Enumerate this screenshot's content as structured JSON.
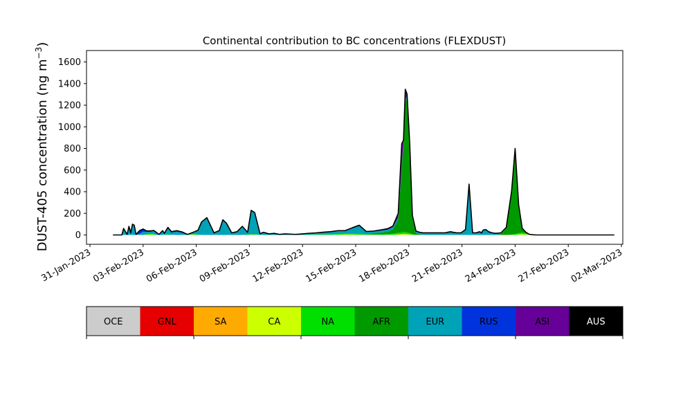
{
  "chart_data": {
    "type": "area",
    "stacked": true,
    "title": "Continental contribution to BC concentrations (FLEXDUST)",
    "ylabel": "DUST-405 concentration (ng m",
    "ylabel_sup": "−3",
    "ylabel_close": ")",
    "ylim": [
      -80,
      1720
    ],
    "yticks": [
      0,
      200,
      400,
      600,
      800,
      1000,
      1200,
      1400,
      1600
    ],
    "xlim_days": [
      -0.6,
      30.1
    ],
    "xticks": [
      {
        "day": 0,
        "label": "31-Jan-2023"
      },
      {
        "day": 3,
        "label": "03-Feb-2023"
      },
      {
        "day": 6,
        "label": "06-Feb-2023"
      },
      {
        "day": 9,
        "label": "09-Feb-2023"
      },
      {
        "day": 12,
        "label": "12-Feb-2023"
      },
      {
        "day": 15,
        "label": "15-Feb-2023"
      },
      {
        "day": 18,
        "label": "18-Feb-2023"
      },
      {
        "day": 21,
        "label": "21-Feb-2023"
      },
      {
        "day": 24,
        "label": "24-Feb-2023"
      },
      {
        "day": 27,
        "label": "27-Feb-2023"
      },
      {
        "day": 30,
        "label": "02-Mar-2023"
      }
    ],
    "x_days": [
      1.3,
      1.6,
      1.8,
      1.9,
      2.1,
      2.2,
      2.3,
      2.4,
      2.5,
      2.6,
      2.8,
      3.0,
      3.2,
      3.4,
      3.6,
      3.7,
      3.9,
      4.1,
      4.2,
      4.4,
      4.6,
      4.9,
      5.2,
      5.5,
      5.7,
      5.9,
      6.1,
      6.3,
      6.6,
      6.8,
      7.0,
      7.3,
      7.5,
      7.7,
      8.0,
      8.3,
      8.6,
      8.9,
      9.1,
      9.3,
      9.6,
      9.8,
      10.1,
      10.4,
      10.7,
      11.0,
      11.3,
      11.6,
      12.0,
      12.4,
      12.8,
      13.2,
      13.6,
      14.0,
      14.4,
      14.8,
      15.2,
      15.6,
      16.0,
      16.4,
      16.8,
      17.1,
      17.4,
      17.6,
      17.7,
      17.8,
      17.9,
      18.05,
      18.2,
      18.4,
      18.6,
      18.8,
      19.1,
      19.3,
      19.5,
      19.7,
      19.9,
      20.05,
      20.2,
      20.35,
      20.5,
      20.7,
      20.95,
      21.2,
      21.4,
      21.6,
      21.8,
      22.0,
      22.1,
      22.2,
      22.35,
      22.5,
      22.7,
      22.9,
      23.2,
      23.5,
      23.8,
      24.0,
      24.2,
      24.4,
      24.6,
      24.8,
      25.0,
      25.2,
      25.4,
      25.6,
      25.8,
      26.0,
      26.3,
      26.6,
      26.8,
      27.1,
      27.4,
      27.8,
      28.2,
      28.5,
      28.7,
      28.9,
      29.1,
      29.3,
      29.5,
      29.6
    ],
    "series": [
      {
        "name": "OCE",
        "color": "#cccccc",
        "values": [
          0,
          0,
          0,
          0,
          0,
          0,
          0,
          0,
          0,
          0,
          0,
          0,
          0,
          0,
          0,
          0,
          0,
          0,
          0,
          0,
          0,
          0,
          0,
          0,
          0,
          0,
          0,
          0,
          0,
          0,
          0,
          0,
          0,
          0,
          0,
          0,
          0,
          0,
          0,
          0,
          0,
          0,
          0,
          0,
          0,
          0,
          0,
          0,
          0,
          0,
          0,
          0,
          0,
          0,
          0,
          0,
          0,
          0,
          0,
          0,
          0,
          0,
          0,
          0,
          0,
          0,
          0,
          0,
          0,
          0,
          0,
          0,
          0,
          0,
          0,
          0,
          0,
          0,
          0,
          0,
          0,
          0,
          0,
          0,
          0,
          0,
          0,
          0,
          0,
          0,
          0,
          0,
          0,
          0,
          0,
          0,
          0,
          0,
          0,
          0,
          0,
          0,
          0,
          0,
          0,
          0,
          0,
          0,
          0,
          0,
          0,
          0,
          0,
          0,
          0,
          0,
          0,
          0,
          0,
          0
        ]
      },
      {
        "name": "GNL",
        "color": "#e60000",
        "values": [
          0,
          0,
          0,
          0,
          0,
          0,
          0,
          0,
          0,
          0,
          0,
          0,
          0,
          0,
          0,
          0,
          0,
          0,
          0,
          0,
          0,
          0,
          0,
          0,
          0,
          0,
          0,
          0,
          0,
          0,
          0,
          0,
          0,
          0,
          0,
          0,
          0,
          0,
          0,
          0,
          0,
          0,
          0,
          0,
          0,
          0,
          0,
          0,
          0,
          0,
          0,
          0,
          0,
          0,
          0,
          0,
          0,
          0,
          0,
          0,
          0,
          0,
          0,
          0,
          0,
          0,
          0,
          0,
          0,
          0,
          0,
          0,
          0,
          0,
          0,
          0,
          0,
          0,
          0,
          0,
          0,
          0,
          0,
          0,
          0,
          0,
          0,
          0,
          0,
          0,
          0,
          0,
          0,
          0,
          0,
          0,
          0,
          0,
          0,
          0,
          0,
          0,
          0,
          0,
          0,
          0,
          0,
          0,
          0,
          0,
          0,
          0,
          0,
          0,
          0,
          0,
          0,
          0,
          0,
          0
        ]
      },
      {
        "name": "SA",
        "color": "#ffaa00",
        "values": [
          0,
          0,
          0,
          0,
          0,
          0,
          0,
          0,
          0,
          0,
          0,
          0,
          0,
          0,
          0,
          0,
          0,
          0,
          0,
          0,
          0,
          0,
          0,
          0,
          0,
          0,
          0,
          0,
          0,
          0,
          0,
          0,
          0,
          0,
          0,
          0,
          0,
          0,
          0,
          0,
          0,
          0,
          0,
          0,
          0,
          0,
          0,
          0,
          0,
          0,
          0,
          0,
          0,
          0,
          0,
          0,
          0,
          0,
          0,
          0,
          0,
          0,
          0,
          0,
          0,
          0,
          0,
          0,
          0,
          0,
          0,
          0,
          0,
          0,
          0,
          0,
          0,
          0,
          0,
          0,
          0,
          0,
          0,
          0,
          0,
          0,
          0,
          0,
          0,
          0,
          0,
          0,
          0,
          0,
          0,
          0,
          0,
          0,
          0,
          0,
          0,
          0,
          0,
          0,
          0,
          0,
          0,
          0,
          0,
          0,
          0,
          0,
          0,
          0,
          0,
          0,
          0,
          0,
          0,
          0
        ]
      },
      {
        "name": "CA",
        "color": "#ccff00",
        "values": [
          0,
          0,
          0,
          0,
          0,
          0,
          0,
          0,
          0,
          0,
          0,
          0,
          2,
          4,
          3,
          0,
          0,
          0,
          0,
          0,
          0,
          0,
          0,
          0,
          2,
          2,
          0,
          0,
          0,
          0,
          0,
          0,
          0,
          0,
          0,
          0,
          0,
          0,
          2,
          2,
          0,
          0,
          0,
          0,
          0,
          0,
          0,
          0,
          0,
          0,
          0,
          0,
          0,
          2,
          4,
          4,
          2,
          0,
          0,
          0,
          0,
          2,
          6,
          8,
          10,
          10,
          8,
          6,
          2,
          0,
          0,
          0,
          0,
          0,
          0,
          0,
          0,
          0,
          0,
          0,
          0,
          0,
          0,
          0,
          0,
          0,
          0,
          0,
          0,
          0,
          0,
          0,
          0,
          0,
          0,
          0,
          0,
          0,
          6,
          8,
          6,
          2,
          0,
          0,
          0,
          0,
          0,
          0,
          0,
          0,
          0,
          0,
          0,
          0,
          0,
          0,
          0,
          0,
          0,
          0
        ]
      },
      {
        "name": "NA",
        "color": "#00e000",
        "values": [
          0,
          0,
          0,
          0,
          0,
          0,
          0,
          0,
          0,
          0,
          0,
          0,
          5,
          10,
          8,
          0,
          0,
          0,
          5,
          5,
          2,
          0,
          0,
          0,
          5,
          8,
          4,
          0,
          0,
          0,
          0,
          0,
          0,
          0,
          0,
          0,
          0,
          4,
          6,
          5,
          2,
          0,
          0,
          0,
          0,
          0,
          0,
          0,
          0,
          4,
          5,
          6,
          6,
          8,
          10,
          12,
          10,
          6,
          6,
          6,
          8,
          10,
          14,
          16,
          18,
          18,
          15,
          12,
          6,
          2,
          0,
          0,
          0,
          0,
          0,
          0,
          0,
          0,
          0,
          0,
          0,
          0,
          0,
          0,
          0,
          0,
          0,
          0,
          0,
          0,
          0,
          0,
          0,
          0,
          0,
          0,
          4,
          10,
          12,
          14,
          10,
          4,
          2,
          0,
          0,
          0,
          0,
          0,
          0,
          0,
          0,
          0,
          0,
          0,
          0,
          0,
          0,
          0,
          0,
          0
        ]
      },
      {
        "name": "AFR",
        "color": "#009900",
        "values": [
          0,
          0,
          0,
          0,
          0,
          0,
          0,
          0,
          0,
          0,
          0,
          0,
          0,
          0,
          0,
          0,
          0,
          0,
          0,
          0,
          0,
          0,
          0,
          0,
          0,
          0,
          0,
          0,
          0,
          0,
          0,
          0,
          0,
          0,
          0,
          0,
          0,
          0,
          0,
          0,
          0,
          0,
          0,
          0,
          0,
          0,
          0,
          0,
          0,
          0,
          0,
          0,
          0,
          0,
          0,
          0,
          0,
          0,
          10,
          15,
          20,
          40,
          120,
          600,
          820,
          1200,
          1250,
          800,
          150,
          15,
          5,
          0,
          0,
          0,
          0,
          0,
          0,
          0,
          0,
          0,
          0,
          0,
          0,
          0,
          0,
          0,
          0,
          0,
          0,
          0,
          0,
          0,
          0,
          0,
          10,
          60,
          400,
          790,
          260,
          40,
          10,
          0,
          0,
          0,
          0,
          0,
          0,
          0,
          0,
          0,
          0,
          0,
          0,
          0,
          0,
          0,
          0,
          0
        ]
      },
      {
        "name": "EUR",
        "color": "#00a2b8",
        "values": [
          0,
          0,
          0,
          60,
          5,
          80,
          20,
          100,
          90,
          5,
          10,
          30,
          20,
          15,
          25,
          30,
          5,
          40,
          10,
          60,
          20,
          30,
          20,
          5,
          10,
          20,
          40,
          120,
          160,
          90,
          20,
          40,
          140,
          110,
          20,
          30,
          80,
          20,
          220,
          200,
          10,
          25,
          10,
          15,
          5,
          10,
          8,
          5,
          10,
          12,
          15,
          20,
          25,
          30,
          26,
          50,
          78,
          26,
          20,
          20,
          20,
          20,
          20,
          20,
          20,
          20,
          20,
          20,
          20,
          20,
          20,
          20,
          20,
          20,
          20,
          20,
          20,
          20,
          25,
          30,
          25,
          20,
          20,
          50,
          470,
          20,
          20,
          30,
          20,
          45,
          50,
          30,
          20,
          15,
          10,
          10,
          0,
          0,
          0,
          0,
          0,
          0,
          0,
          0,
          0,
          0,
          0,
          0,
          0,
          0,
          0,
          0,
          0,
          0,
          0,
          0,
          0,
          0,
          0,
          0
        ]
      },
      {
        "name": "RUS",
        "color": "#0033dd",
        "values": [
          0,
          0,
          0,
          0,
          0,
          0,
          0,
          0,
          0,
          0,
          30,
          25,
          10,
          8,
          5,
          0,
          0,
          0,
          0,
          5,
          8,
          10,
          8,
          0,
          0,
          0,
          0,
          0,
          0,
          0,
          0,
          0,
          0,
          0,
          0,
          0,
          0,
          0,
          0,
          0,
          0,
          0,
          0,
          0,
          0,
          0,
          0,
          0,
          0,
          0,
          0,
          0,
          0,
          0,
          0,
          0,
          0,
          0,
          0,
          0,
          0,
          0,
          0,
          0,
          0,
          0,
          0,
          0,
          0,
          0,
          0,
          0,
          0,
          0,
          0,
          0,
          0,
          0,
          0,
          0,
          0,
          0,
          0,
          0,
          0,
          0,
          0,
          0,
          0,
          0,
          0,
          0,
          0,
          0,
          0,
          0,
          0,
          0,
          0,
          0,
          0,
          0,
          0,
          0,
          0,
          0,
          0,
          0,
          0,
          0,
          0,
          0,
          0,
          0,
          0,
          0,
          0,
          0,
          0,
          0
        ]
      },
      {
        "name": "ASI",
        "color": "#660099",
        "values": [
          0,
          0,
          0,
          0,
          0,
          0,
          0,
          0,
          0,
          0,
          0,
          0,
          0,
          0,
          0,
          0,
          0,
          0,
          0,
          0,
          0,
          0,
          0,
          0,
          0,
          0,
          0,
          0,
          0,
          0,
          0,
          0,
          0,
          0,
          0,
          0,
          0,
          0,
          0,
          0,
          0,
          0,
          0,
          0,
          0,
          0,
          0,
          0,
          0,
          0,
          0,
          0,
          0,
          0,
          0,
          0,
          0,
          0,
          0,
          5,
          10,
          10,
          40,
          200,
          10,
          100,
          10,
          10,
          5,
          0,
          0,
          0,
          0,
          0,
          0,
          0,
          0,
          0,
          0,
          0,
          0,
          0,
          0,
          0,
          0,
          0,
          0,
          0,
          0,
          0,
          0,
          0,
          0,
          0,
          0,
          0,
          0,
          0,
          0,
          0,
          0,
          0,
          0,
          0,
          0,
          0,
          0,
          0,
          0,
          0,
          0,
          0,
          0,
          0,
          0,
          0,
          0,
          0,
          0,
          0
        ]
      },
      {
        "name": "AUS",
        "color": "#000000",
        "values": [
          0,
          0,
          0,
          0,
          0,
          0,
          0,
          0,
          0,
          0,
          0,
          0,
          0,
          0,
          0,
          0,
          0,
          0,
          0,
          0,
          0,
          0,
          0,
          0,
          0,
          0,
          0,
          0,
          0,
          0,
          0,
          0,
          0,
          0,
          0,
          0,
          0,
          0,
          0,
          0,
          0,
          0,
          0,
          0,
          0,
          0,
          0,
          0,
          0,
          0,
          0,
          0,
          0,
          0,
          0,
          0,
          0,
          0,
          0,
          0,
          0,
          0,
          0,
          0,
          0,
          0,
          0,
          0,
          0,
          0,
          0,
          0,
          0,
          0,
          0,
          0,
          0,
          0,
          0,
          0,
          0,
          0,
          0,
          0,
          0,
          0,
          0,
          0,
          0,
          0,
          0,
          0,
          0,
          0,
          0,
          0,
          0,
          0,
          0,
          0,
          0,
          0,
          0,
          0,
          0,
          0,
          0,
          0,
          0,
          0,
          0,
          0,
          0,
          0,
          0,
          0,
          0,
          0,
          0,
          0
        ]
      }
    ],
    "legend": {
      "placement": "bottom",
      "items": [
        "OCE",
        "GNL",
        "SA",
        "CA",
        "NA",
        "AFR",
        "EUR",
        "RUS",
        "ASI",
        "AUS"
      ]
    }
  }
}
